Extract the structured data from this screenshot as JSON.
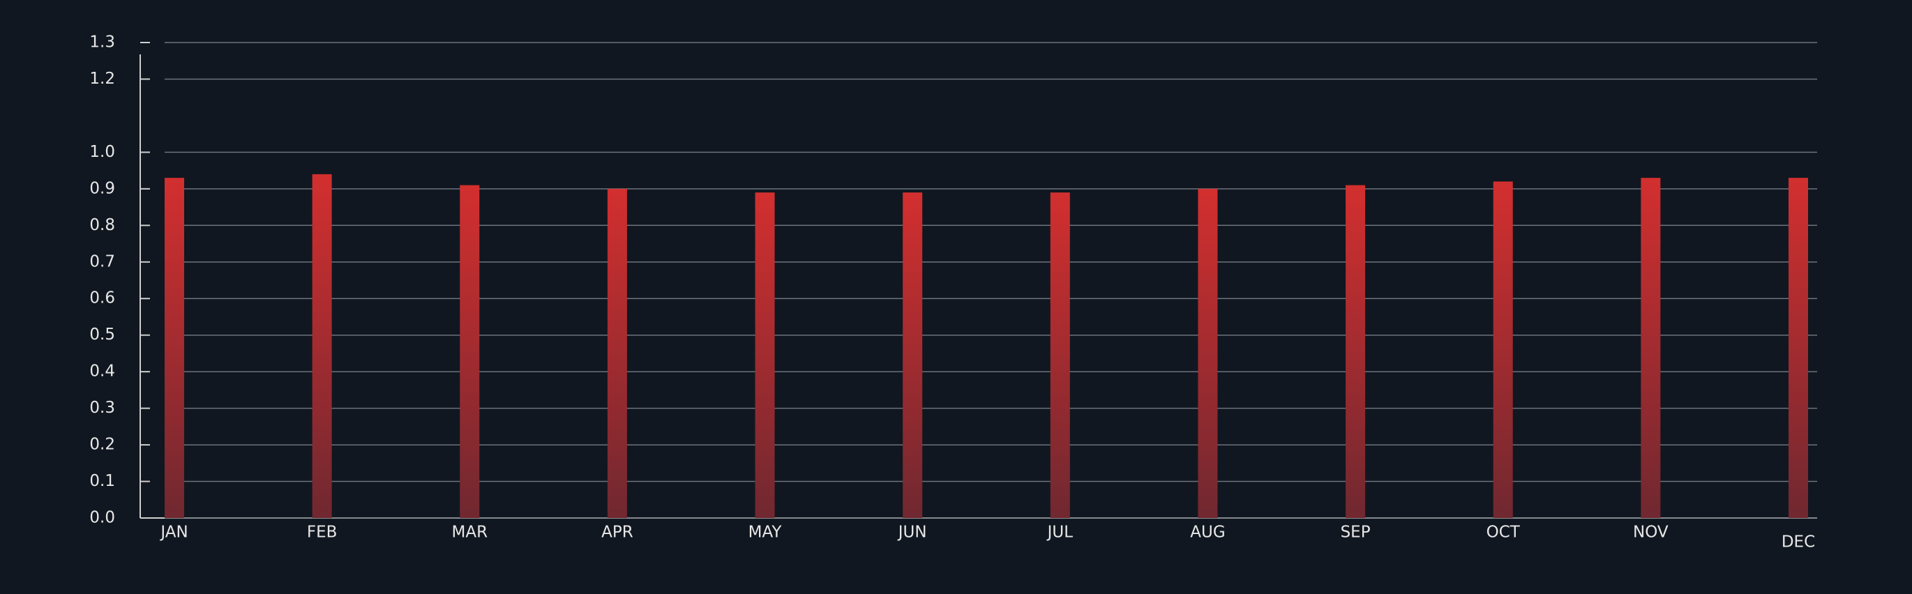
{
  "chart_data": {
    "type": "bar",
    "categories": [
      "JAN",
      "FEB",
      "MAR",
      "APR",
      "MAY",
      "JUN",
      "JUL",
      "AUG",
      "SEP",
      "OCT",
      "NOV",
      "DEC"
    ],
    "values": [
      0.93,
      0.94,
      0.91,
      0.9,
      0.89,
      0.89,
      0.89,
      0.9,
      0.91,
      0.92,
      0.93,
      0.93
    ],
    "color": "#d32f2f",
    "ylim": [
      0,
      1.3
    ],
    "yticks": [
      {
        "value": 0,
        "label": "0.0"
      },
      0.1,
      0.2,
      0.3,
      0.4,
      0.5,
      0.6,
      0.7,
      0.8,
      0.9,
      {
        "value": 1,
        "label": "1.0"
      },
      1.2,
      1.3
    ],
    "grid": true
  }
}
